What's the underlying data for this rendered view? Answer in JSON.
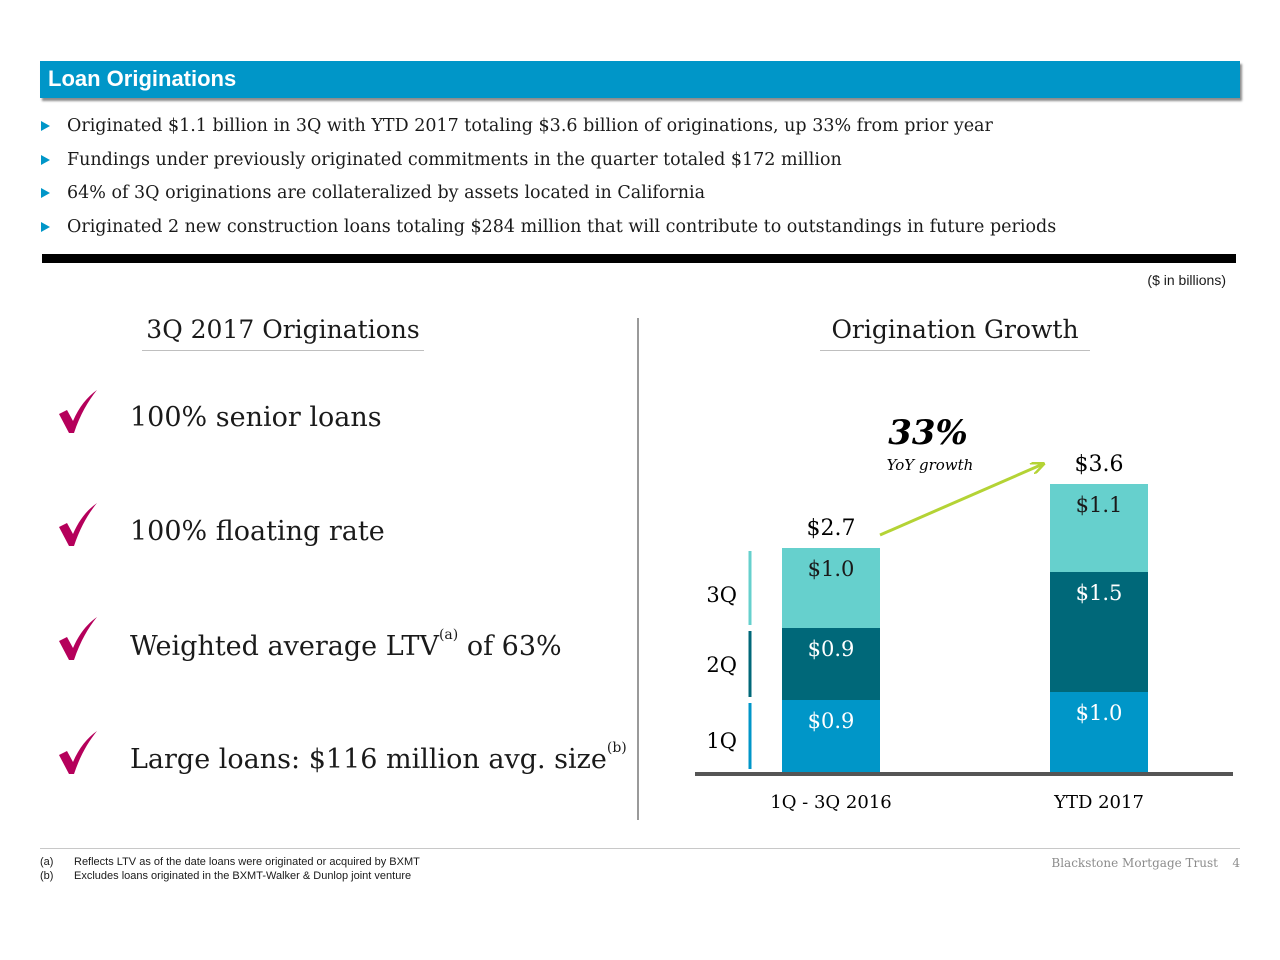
{
  "header": {
    "title": "Loan Originations"
  },
  "bullets": [
    "Originated $1.1 billion in 3Q with YTD 2017 totaling $3.6 billion of originations, up 33% from prior year",
    "Fundings under previously originated commitments in the quarter totaled $172 million",
    "64% of 3Q originations are collateralized by assets located in California",
    "Originated 2 new construction loans totaling $284 million that will contribute to outstandings in future periods"
  ],
  "units_note": "($ in billions)",
  "left_panel": {
    "heading": "3Q 2017 Originations",
    "features": [
      {
        "text": "100% senior loans",
        "sup": "",
        "after": ""
      },
      {
        "text": "100% floating rate",
        "sup": "",
        "after": ""
      },
      {
        "text": "Weighted average LTV",
        "sup": "(a)",
        "after": " of 63%"
      },
      {
        "text": "Large loans: $116 million avg. size",
        "sup": "(b)",
        "after": ""
      }
    ]
  },
  "right_panel": {
    "heading": "Origination Growth"
  },
  "chart_data": {
    "type": "bar",
    "stacked": true,
    "title": "Origination Growth",
    "units": "$ in billions",
    "categories": [
      "1Q - 3Q 2016",
      "YTD 2017"
    ],
    "series": [
      {
        "name": "1Q",
        "values": [
          0.9,
          1.0
        ],
        "labels": [
          "$0.9",
          "$1.0"
        ],
        "color": "#0096c8"
      },
      {
        "name": "2Q",
        "values": [
          0.9,
          1.5
        ],
        "labels": [
          "$0.9",
          "$1.5"
        ],
        "color": "#006879"
      },
      {
        "name": "3Q",
        "values": [
          1.0,
          1.1
        ],
        "labels": [
          "$1.0",
          "$1.1"
        ],
        "color": "#66d0cd"
      }
    ],
    "totals": [
      2.7,
      3.6
    ],
    "total_labels": [
      "$2.7",
      "$3.6"
    ],
    "quarter_labels": [
      "1Q",
      "2Q",
      "3Q"
    ],
    "annotation": {
      "value": "33%",
      "caption": "YoY growth"
    },
    "ylim": [
      0,
      3.6
    ]
  },
  "footnotes": [
    {
      "label": "(a)",
      "text": "Reflects LTV as of the date loans were originated or acquired by BXMT"
    },
    {
      "label": "(b)",
      "text": "Excludes loans originated in the BXMT-Walker & Dunlop joint venture"
    }
  ],
  "footer": {
    "brand": "Blackstone Mortgage Trust",
    "page": "4"
  },
  "colors": {
    "accent": "#0096c8",
    "check": "#b5005b",
    "arrow": "#b4d335",
    "dark_teal": "#006879",
    "light_teal": "#66d0cd"
  }
}
